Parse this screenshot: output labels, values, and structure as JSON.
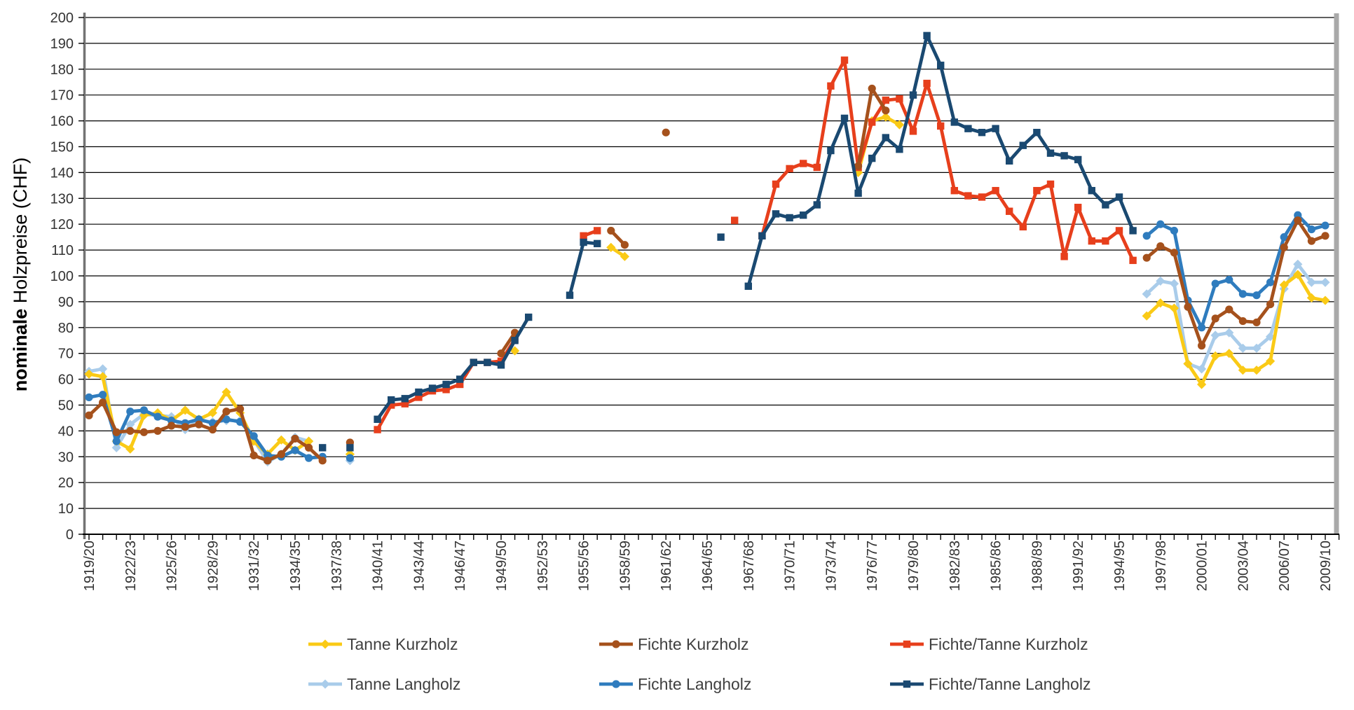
{
  "chart_data": {
    "type": "line",
    "title": "",
    "ylabel_bold": "nominale",
    "ylabel_rest": " Holzpreise (CHF)",
    "ylim": [
      0,
      200
    ],
    "ytick_step": 10,
    "grid": "horizontal",
    "legend_position": "bottom",
    "x_first_year": 1919,
    "x_last_year": 2009,
    "x_tick_labels": [
      "1919/20",
      "1922/23",
      "1925/26",
      "1928/29",
      "1931/32",
      "1934/35",
      "1937/38",
      "1940/41",
      "1943/44",
      "1946/47",
      "1949/50",
      "1952/53",
      "1955/56",
      "1958/59",
      "1961/62",
      "1964/65",
      "1967/68",
      "1970/71",
      "1973/74",
      "1976/77",
      "1979/80",
      "1982/83",
      "1985/86",
      "1988/89",
      "1991/92",
      "1994/95",
      "1997/98",
      "2000/01",
      "2003/04",
      "2006/07",
      "2009/10"
    ],
    "legend_order": [
      "Tanne Kurzholz",
      "Fichte Kurzholz",
      "Fichte/Tanne Kurzholz",
      "Tanne Langholz",
      "Fichte Langholz",
      "Fichte/Tanne Langholz"
    ],
    "series": [
      {
        "name": "Tanne Langholz",
        "color": "#A9CCEA",
        "marker": "diamond",
        "data": [
          [
            1919,
            63
          ],
          [
            1920,
            64
          ],
          [
            1921,
            33.5
          ],
          [
            1922,
            42.5
          ],
          [
            1923,
            46.5
          ],
          [
            1924,
            46
          ],
          [
            1925,
            45.5
          ],
          [
            1926,
            40.5
          ],
          [
            1927,
            44
          ],
          [
            1928,
            43.5
          ],
          [
            1929,
            44
          ],
          [
            1930,
            44
          ],
          [
            1931,
            36.5
          ],
          [
            1932,
            28
          ],
          [
            1933,
            31
          ],
          [
            1934,
            37.5
          ],
          [
            1935,
            36
          ],
          [
            1938,
            28.5
          ],
          [
            1996,
            93
          ],
          [
            1997,
            98
          ],
          [
            1998,
            97
          ],
          [
            1999,
            66
          ],
          [
            2000,
            64
          ],
          [
            2001,
            77
          ],
          [
            2002,
            78
          ],
          [
            2003,
            72
          ],
          [
            2004,
            72
          ],
          [
            2005,
            76.5
          ],
          [
            2006,
            95
          ],
          [
            2007,
            104.5
          ],
          [
            2008,
            97.5
          ],
          [
            2009,
            97.5
          ]
        ]
      },
      {
        "name": "Tanne Kurzholz",
        "color": "#FACA16",
        "marker": "diamond",
        "data": [
          [
            1919,
            62
          ],
          [
            1920,
            61
          ],
          [
            1921,
            36
          ],
          [
            1922,
            33
          ],
          [
            1923,
            46
          ],
          [
            1924,
            47
          ],
          [
            1925,
            44
          ],
          [
            1926,
            48
          ],
          [
            1927,
            44.5
          ],
          [
            1928,
            47
          ],
          [
            1929,
            55
          ],
          [
            1930,
            47
          ],
          [
            1931,
            36
          ],
          [
            1932,
            31
          ],
          [
            1933,
            36.5
          ],
          [
            1934,
            32.5
          ],
          [
            1935,
            36
          ],
          [
            1938,
            31
          ],
          [
            1950,
            71
          ],
          [
            1957,
            111
          ],
          [
            1958,
            107.5
          ],
          [
            1975,
            140
          ],
          [
            1976,
            160
          ],
          [
            1977,
            161.5
          ],
          [
            1978,
            158.5
          ],
          [
            1996,
            84.5
          ],
          [
            1997,
            89.5
          ],
          [
            1998,
            87.5
          ],
          [
            1999,
            66
          ],
          [
            2000,
            58
          ],
          [
            2001,
            69
          ],
          [
            2002,
            70
          ],
          [
            2003,
            63.5
          ],
          [
            2004,
            63.5
          ],
          [
            2005,
            67
          ],
          [
            2006,
            96.5
          ],
          [
            2007,
            100.5
          ],
          [
            2008,
            91.5
          ],
          [
            2009,
            90.5
          ]
        ]
      },
      {
        "name": "Fichte/Tanne Kurzholz",
        "color": "#E73F1C",
        "marker": "square",
        "data": [
          [
            1940,
            40.5
          ],
          [
            1941,
            50
          ],
          [
            1942,
            50.5
          ],
          [
            1943,
            53
          ],
          [
            1944,
            55.5
          ],
          [
            1945,
            56
          ],
          [
            1946,
            58
          ],
          [
            1947,
            66.5
          ],
          [
            1948,
            66.5
          ],
          [
            1949,
            67
          ],
          [
            1950,
            75.5
          ],
          [
            1955,
            115.5
          ],
          [
            1956,
            117.5
          ],
          [
            1966,
            121.5
          ],
          [
            1968,
            115.5
          ],
          [
            1969,
            135.5
          ],
          [
            1970,
            141.5
          ],
          [
            1971,
            143.5
          ],
          [
            1972,
            142
          ],
          [
            1973,
            173.5
          ],
          [
            1974,
            183.5
          ],
          [
            1975,
            142
          ],
          [
            1976,
            159.5
          ],
          [
            1977,
            168
          ],
          [
            1978,
            168.5
          ],
          [
            1979,
            156
          ],
          [
            1980,
            174.5
          ],
          [
            1981,
            158
          ],
          [
            1982,
            133
          ],
          [
            1983,
            131
          ],
          [
            1984,
            130.5
          ],
          [
            1985,
            133
          ],
          [
            1986,
            125
          ],
          [
            1987,
            119
          ],
          [
            1988,
            133
          ],
          [
            1989,
            135.5
          ],
          [
            1990,
            107.5
          ],
          [
            1991,
            126.5
          ],
          [
            1992,
            113.5
          ],
          [
            1993,
            113.5
          ],
          [
            1994,
            117.5
          ],
          [
            1995,
            106
          ]
        ]
      },
      {
        "name": "Fichte Langholz",
        "color": "#2F7CBE",
        "marker": "circle",
        "data": [
          [
            1919,
            53
          ],
          [
            1920,
            54
          ],
          [
            1921,
            36
          ],
          [
            1922,
            47.5
          ],
          [
            1923,
            48
          ],
          [
            1924,
            45.5
          ],
          [
            1925,
            44
          ],
          [
            1926,
            43
          ],
          [
            1927,
            44.5
          ],
          [
            1928,
            43
          ],
          [
            1929,
            44.5
          ],
          [
            1930,
            43.5
          ],
          [
            1931,
            38
          ],
          [
            1932,
            30.5
          ],
          [
            1933,
            30
          ],
          [
            1934,
            32.5
          ],
          [
            1935,
            29.5
          ],
          [
            1936,
            30
          ],
          [
            1938,
            29.5
          ],
          [
            1996,
            115.5
          ],
          [
            1997,
            120
          ],
          [
            1998,
            117.5
          ],
          [
            1999,
            90.5
          ],
          [
            2000,
            80
          ],
          [
            2001,
            97
          ],
          [
            2002,
            98.5
          ],
          [
            2003,
            93
          ],
          [
            2004,
            92.5
          ],
          [
            2005,
            97.5
          ],
          [
            2006,
            115
          ],
          [
            2007,
            123.5
          ],
          [
            2008,
            118
          ],
          [
            2009,
            119.5
          ]
        ]
      },
      {
        "name": "Fichte Kurzholz",
        "color": "#A5511C",
        "marker": "circle",
        "data": [
          [
            1919,
            46
          ],
          [
            1920,
            51
          ],
          [
            1921,
            39.5
          ],
          [
            1922,
            40
          ],
          [
            1923,
            39.5
          ],
          [
            1924,
            40
          ],
          [
            1925,
            42
          ],
          [
            1926,
            41.5
          ],
          [
            1927,
            42.5
          ],
          [
            1928,
            40.5
          ],
          [
            1929,
            47.5
          ],
          [
            1930,
            48.5
          ],
          [
            1931,
            30.5
          ],
          [
            1932,
            28.5
          ],
          [
            1933,
            31
          ],
          [
            1934,
            37
          ],
          [
            1935,
            33.5
          ],
          [
            1936,
            28.5
          ],
          [
            1938,
            35.5
          ],
          [
            1949,
            70
          ],
          [
            1950,
            78
          ],
          [
            1957,
            117.5
          ],
          [
            1958,
            112
          ],
          [
            1961,
            155.5
          ],
          [
            1975,
            142.5
          ],
          [
            1976,
            172.5
          ],
          [
            1977,
            164
          ],
          [
            1996,
            107
          ],
          [
            1997,
            111.5
          ],
          [
            1998,
            109
          ],
          [
            1999,
            88
          ],
          [
            2000,
            73
          ],
          [
            2001,
            83.5
          ],
          [
            2002,
            87
          ],
          [
            2003,
            82.5
          ],
          [
            2004,
            82
          ],
          [
            2005,
            89
          ],
          [
            2006,
            111
          ],
          [
            2007,
            121.5
          ],
          [
            2008,
            113.5
          ],
          [
            2009,
            115.5
          ]
        ]
      },
      {
        "name": "Fichte/Tanne Langholz",
        "color": "#1A4971",
        "marker": "square",
        "data": [
          [
            1936,
            33.5
          ],
          [
            1938,
            33.5
          ],
          [
            1940,
            44.5
          ],
          [
            1941,
            52
          ],
          [
            1942,
            52.5
          ],
          [
            1943,
            55
          ],
          [
            1944,
            56.5
          ],
          [
            1945,
            58
          ],
          [
            1946,
            60
          ],
          [
            1947,
            66.5
          ],
          [
            1948,
            66.5
          ],
          [
            1949,
            65.5
          ],
          [
            1950,
            75
          ],
          [
            1951,
            84
          ],
          [
            1954,
            92.5
          ],
          [
            1955,
            113
          ],
          [
            1956,
            112.5
          ],
          [
            1965,
            115
          ],
          [
            1967,
            96
          ],
          [
            1968,
            115.5
          ],
          [
            1969,
            124
          ],
          [
            1970,
            122.5
          ],
          [
            1971,
            123.5
          ],
          [
            1972,
            127.5
          ],
          [
            1973,
            148.5
          ],
          [
            1974,
            161
          ],
          [
            1975,
            132
          ],
          [
            1976,
            145.5
          ],
          [
            1977,
            153.5
          ],
          [
            1978,
            149
          ],
          [
            1979,
            170
          ],
          [
            1980,
            193
          ],
          [
            1981,
            181.5
          ],
          [
            1982,
            159.5
          ],
          [
            1983,
            157
          ],
          [
            1984,
            155.5
          ],
          [
            1985,
            157
          ],
          [
            1986,
            144.5
          ],
          [
            1987,
            150.5
          ],
          [
            1988,
            155.5
          ],
          [
            1989,
            147.5
          ],
          [
            1990,
            146.5
          ],
          [
            1991,
            145
          ],
          [
            1992,
            133
          ],
          [
            1993,
            127.5
          ],
          [
            1994,
            130.5
          ],
          [
            1995,
            117.5
          ]
        ]
      }
    ],
    "colors": {
      "grid": "#000000",
      "axis_left": "#737373",
      "axis_bottom": "#000000",
      "right_edge_bar": "#a9a9a9",
      "tick_label": "#333333",
      "legend_text": "#3f3f3f",
      "background": "#ffffff"
    }
  }
}
